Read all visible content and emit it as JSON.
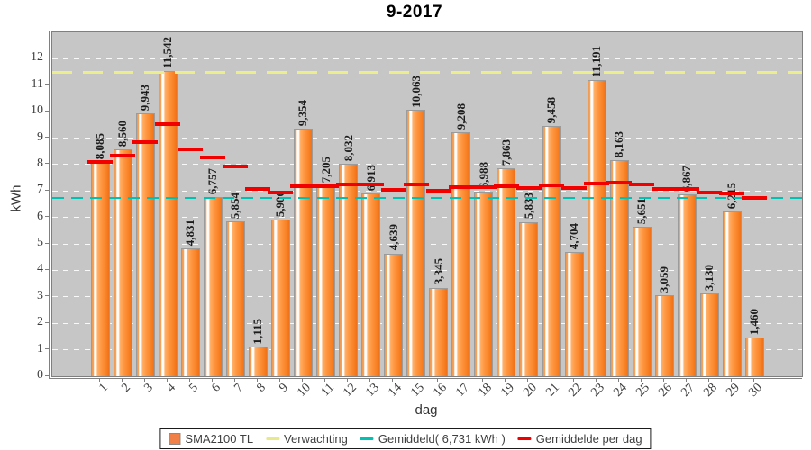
{
  "title": "9-2017",
  "y_axis": {
    "label": "kWh"
  },
  "x_axis": {
    "label": "dag"
  },
  "legend": {
    "items": [
      {
        "label": "SMA2100 TL",
        "swatch": "orange-square",
        "color": "#F08048"
      },
      {
        "label": "Verwachting",
        "swatch": "yellow-dash",
        "color": "#E8E98A"
      },
      {
        "label": "Gemiddeld( 6,731 kWh )",
        "swatch": "cyan-dash",
        "color": "#00C2B2"
      },
      {
        "label": "Gemiddelde per dag",
        "swatch": "red-dash",
        "color": "#F20000"
      }
    ]
  },
  "chart_data": {
    "type": "bar",
    "title": "9-2017",
    "xlabel": "dag",
    "ylabel": "kWh",
    "ylim": [
      0,
      13
    ],
    "y_ticks": [
      0,
      1,
      2,
      3,
      4,
      5,
      6,
      7,
      8,
      9,
      10,
      11,
      12
    ],
    "grid": true,
    "legend_position": "bottom",
    "categories": [
      1,
      2,
      3,
      4,
      5,
      6,
      7,
      8,
      9,
      10,
      11,
      12,
      13,
      14,
      15,
      16,
      17,
      18,
      19,
      20,
      21,
      22,
      23,
      24,
      25,
      26,
      27,
      28,
      29,
      30
    ],
    "series": [
      {
        "name": "SMA2100 TL",
        "render": "bar",
        "color": "#F58220",
        "values": [
          8.085,
          8.56,
          9.943,
          11.542,
          4.831,
          6.757,
          5.854,
          1.115,
          5.906,
          9.354,
          7.205,
          8.032,
          6.913,
          4.639,
          10.063,
          3.345,
          9.208,
          6.988,
          7.863,
          5.833,
          9.458,
          4.704,
          11.191,
          8.163,
          5.651,
          3.059,
          6.867,
          3.13,
          6.215,
          1.46
        ]
      },
      {
        "name": "Gemiddelde per dag",
        "render": "segments",
        "color": "#F20000",
        "values": [
          8.085,
          8.323,
          8.863,
          9.533,
          8.592,
          8.286,
          7.939,
          7.086,
          6.955,
          7.195,
          7.196,
          7.265,
          7.238,
          7.053,
          7.253,
          7.009,
          7.138,
          7.13,
          7.169,
          7.102,
          7.214,
          7.1,
          7.278,
          7.315,
          7.248,
          7.087,
          7.079,
          6.938,
          6.913,
          6.731
        ]
      }
    ],
    "reference_lines": [
      {
        "name": "Verwachting",
        "value": 11.5,
        "color": "#E8E98A",
        "style": "dashed"
      },
      {
        "name": "Gemiddeld",
        "value": 6.731,
        "color": "#00C2B2",
        "style": "dashed",
        "label": "Gemiddeld( 6,731 kWh )"
      }
    ],
    "value_label_format": "decimal-comma-3"
  }
}
